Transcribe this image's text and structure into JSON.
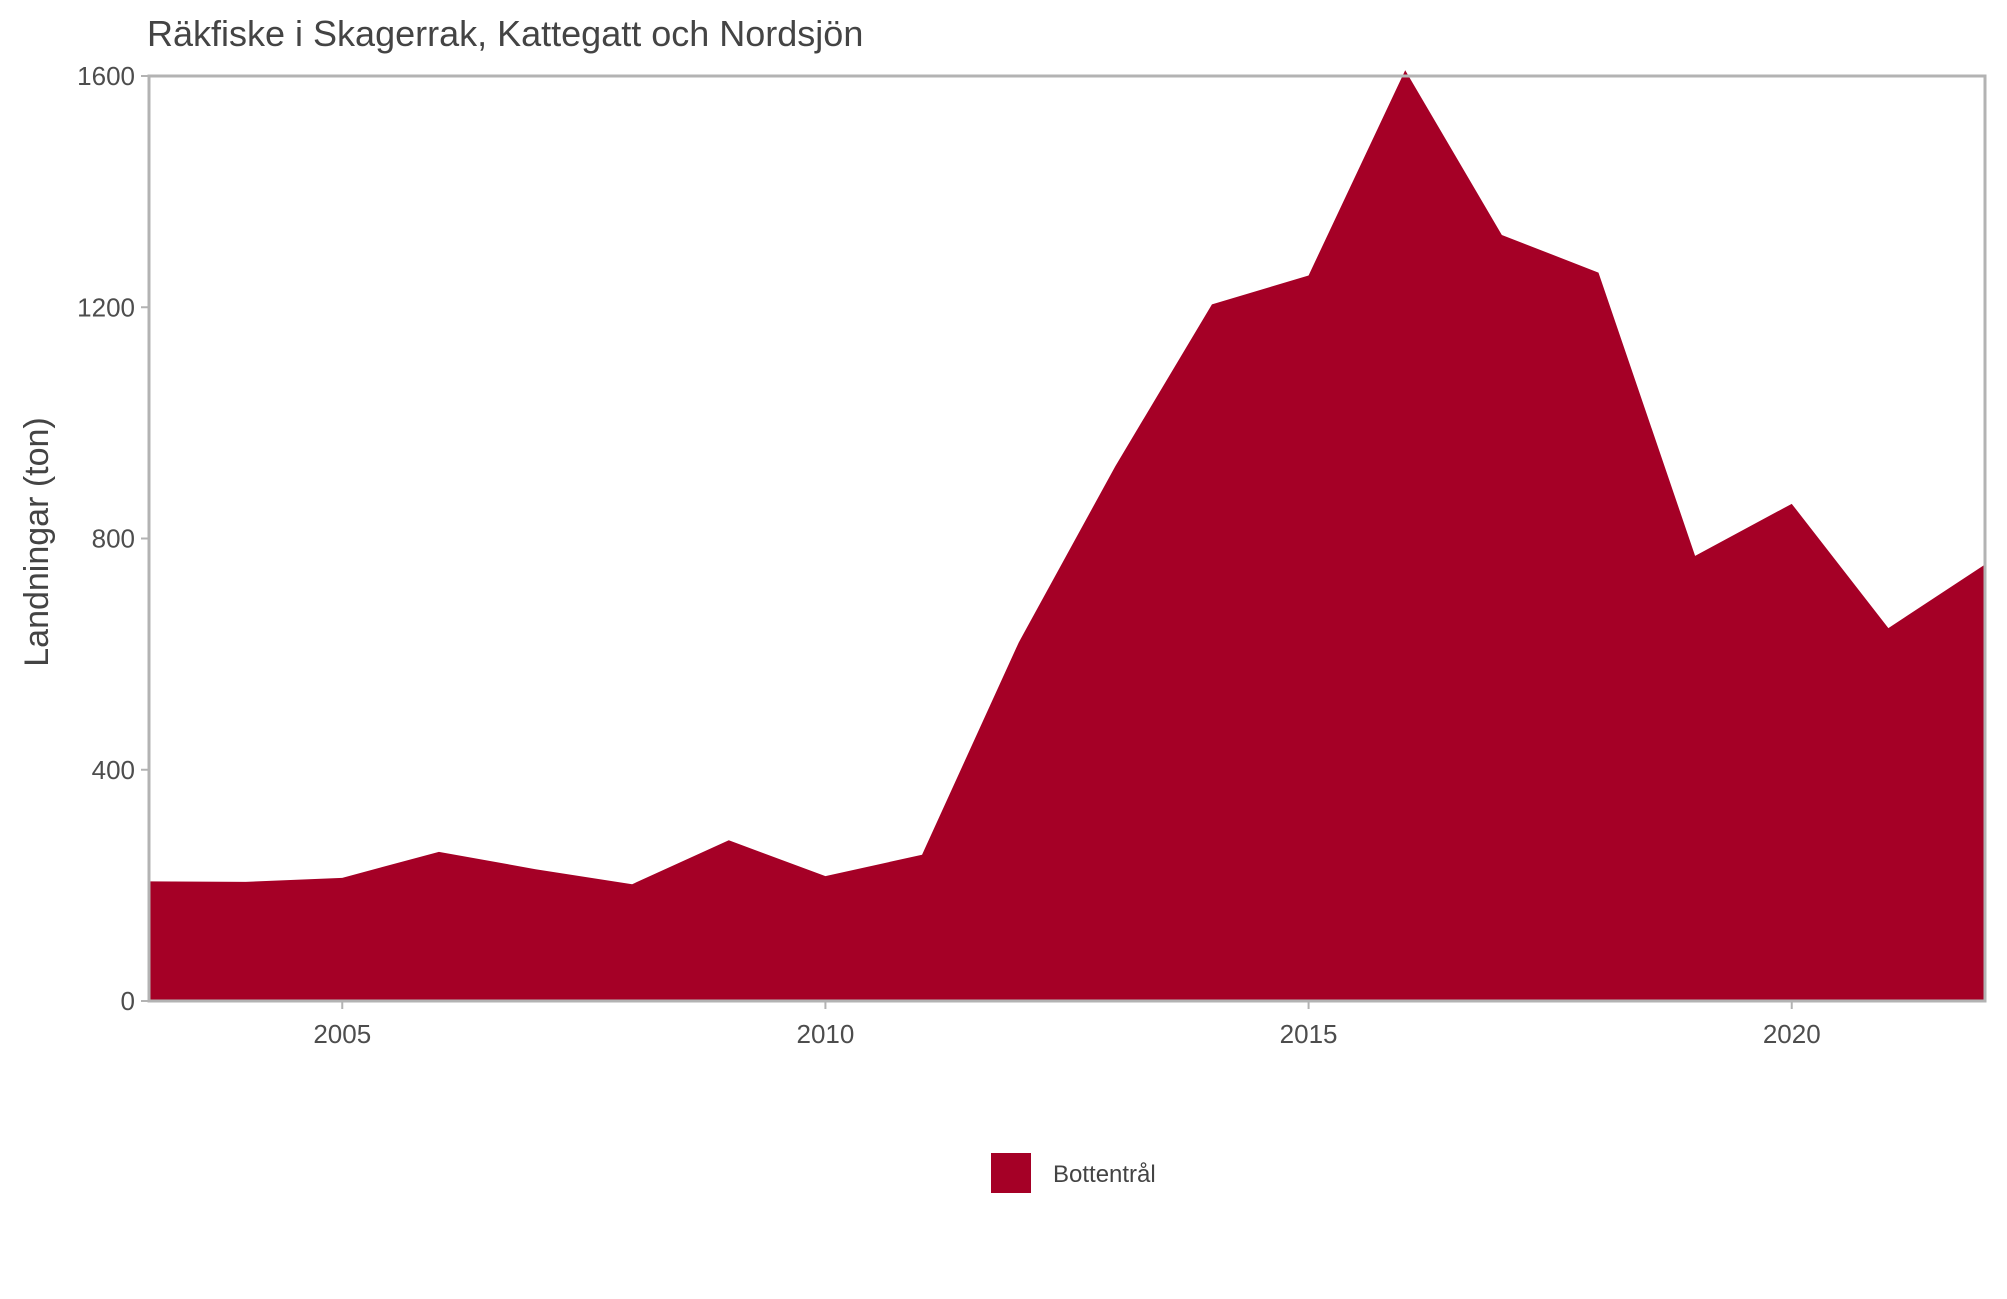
{
  "chart_data": {
    "type": "area",
    "title": "Räkfiske i Skagerrak, Kattegatt och Nordsjön",
    "xlabel": "",
    "ylabel": "Landningar (ton)",
    "x": [
      2003,
      2004,
      2005,
      2006,
      2007,
      2008,
      2009,
      2010,
      2011,
      2012,
      2013,
      2014,
      2015,
      2016,
      2017,
      2018,
      2019,
      2020,
      2021,
      2022
    ],
    "series": [
      {
        "name": "Bottentrål",
        "color": "#a50026",
        "values": [
          207,
          206,
          213,
          258,
          228,
          202,
          278,
          216,
          253,
          620,
          925,
          1205,
          1255,
          1610,
          1325,
          1260,
          770,
          860,
          645,
          755
        ]
      }
    ],
    "xlim": [
      2003,
      2022
    ],
    "ylim": [
      0,
      1600
    ],
    "xticks": [
      "2005",
      "2010",
      "2015",
      "2020"
    ],
    "xtick_values": [
      2005,
      2010,
      2015,
      2020
    ],
    "yticks": [
      "0",
      "400",
      "800",
      "1200",
      "1600"
    ],
    "ytick_values": [
      0,
      400,
      800,
      1200,
      1600
    ],
    "grid": false,
    "legend_position": "bottom"
  },
  "colors": {
    "fill": "#a50026",
    "frame": "#b3b3b3",
    "text": "#444444"
  }
}
